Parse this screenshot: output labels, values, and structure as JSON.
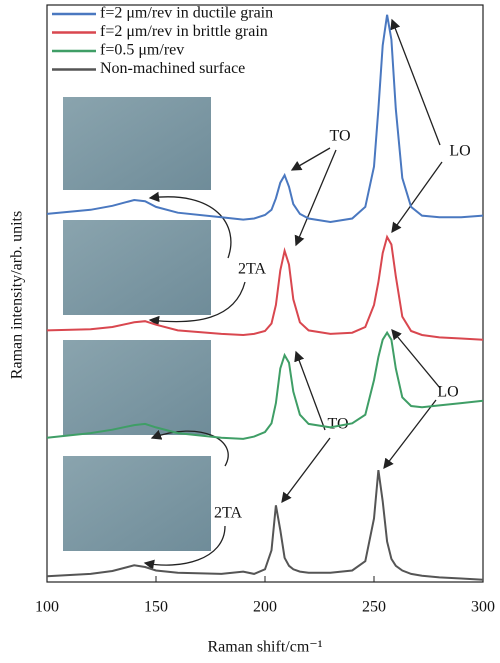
{
  "chart_data": {
    "type": "line",
    "x_label": "Raman shift/cm⁻¹",
    "y_label": "Raman intensity/arb. units",
    "x": [
      100,
      120,
      130,
      140,
      145,
      150,
      160,
      180,
      190,
      195,
      200,
      203,
      205,
      207,
      209,
      211,
      213,
      216,
      220,
      230,
      240,
      246,
      250,
      252,
      254,
      256,
      258,
      260,
      263,
      267,
      272,
      280,
      290,
      300
    ],
    "series": [
      {
        "name": "f=2 μm/rev in ductile grain",
        "color": "#4a78c0",
        "values": [
          63.8,
          64.5,
          65.2,
          66.2,
          66.0,
          65.0,
          64.0,
          63.2,
          62.8,
          63.0,
          63.6,
          64.5,
          66.5,
          69.2,
          70.5,
          68.5,
          65.5,
          63.8,
          63.0,
          62.4,
          63.0,
          65,
          72,
          82,
          93,
          98.3,
          94,
          82,
          70,
          65,
          63.5,
          63.2,
          63.2,
          63.5
        ]
      },
      {
        "name": "f=2 μm/rev in brittle grain",
        "color": "#d9474f",
        "values": [
          43.6,
          43.8,
          44.2,
          45.0,
          45.2,
          44.6,
          43.6,
          43.0,
          42.8,
          43.0,
          43.5,
          44.8,
          48,
          54,
          57.4,
          55,
          49,
          45,
          43.6,
          43.0,
          43.2,
          44.2,
          48,
          52,
          57,
          59.8,
          58.5,
          53,
          46,
          43.5,
          42.8,
          42.4,
          42.2,
          42.0
        ]
      },
      {
        "name": "f=0.5 μm/rev",
        "color": "#3f9e66",
        "values": [
          25.0,
          25.8,
          26.4,
          27.2,
          27.4,
          26.8,
          25.8,
          25.0,
          24.8,
          25.2,
          26.0,
          27.5,
          31,
          37,
          39.3,
          38,
          33,
          29,
          27.4,
          26.8,
          27.5,
          29,
          35,
          39,
          42,
          43.2,
          42,
          37,
          32,
          30.5,
          30.3,
          30.6,
          31.0,
          31.4
        ]
      },
      {
        "name": "Non-machined surface",
        "color": "#555555",
        "values": [
          1.0,
          1.4,
          1.9,
          2.9,
          2.6,
          2.0,
          1.6,
          1.4,
          1.8,
          1.4,
          2.2,
          5.5,
          13.3,
          9,
          4.2,
          2.8,
          2.2,
          1.8,
          1.6,
          1.6,
          2.0,
          3.6,
          11,
          19.4,
          14,
          7,
          4,
          2.8,
          2,
          1.4,
          1.1,
          0.8,
          0.6,
          0.4
        ]
      }
    ],
    "xlim": [
      100,
      300
    ],
    "xticks": [
      100,
      150,
      200,
      250,
      300
    ],
    "ylim": [
      0,
      100
    ],
    "annotations": [
      "TO",
      "LO",
      "2TA",
      "LO",
      "TO",
      "2TA"
    ]
  }
}
